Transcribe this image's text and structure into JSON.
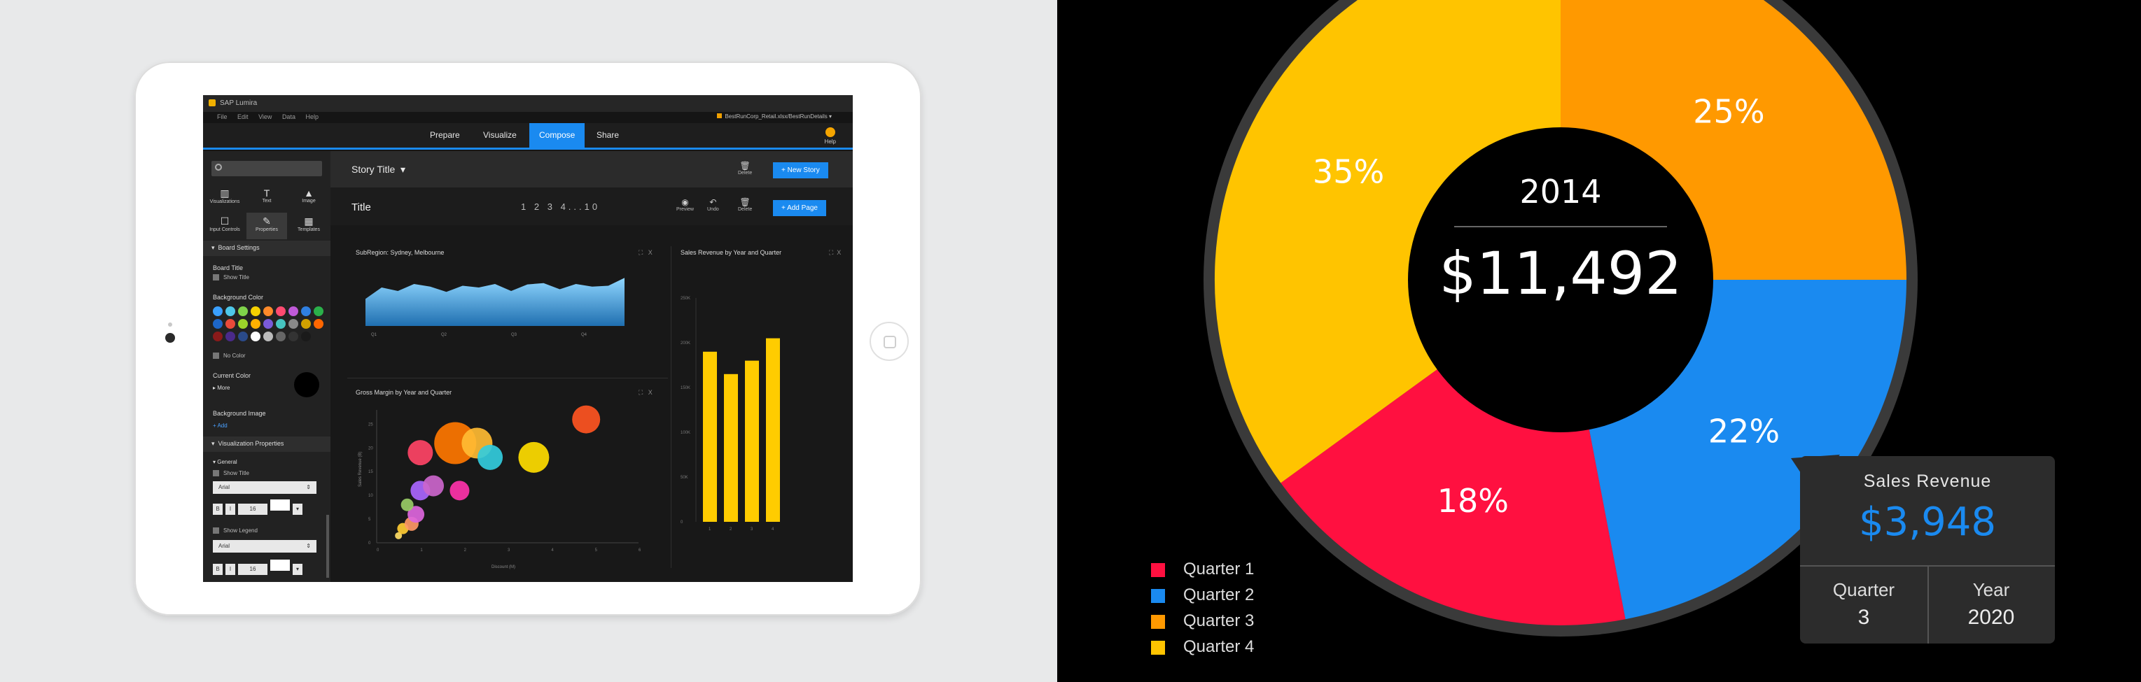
{
  "app": {
    "name": "SAP Lumira",
    "menu": [
      "File",
      "Edit",
      "View",
      "Data",
      "Help"
    ],
    "file_label": "BestRunCorp_Retail.xlsx/BestRunDetails",
    "help_label": "Help"
  },
  "nav": {
    "tabs": [
      {
        "label": "Prepare"
      },
      {
        "label": "Visualize"
      },
      {
        "label": "Compose",
        "active": true
      },
      {
        "label": "Share"
      }
    ]
  },
  "sidebar": {
    "tools": [
      {
        "label": "Visualizations",
        "icon": "bar-chart-icon"
      },
      {
        "label": "Text",
        "icon": "text-icon"
      },
      {
        "label": "Image",
        "icon": "image-icon"
      },
      {
        "label": "Input Controls",
        "icon": "input-controls-icon"
      },
      {
        "label": "Properties",
        "icon": "properties-icon",
        "selected": true
      },
      {
        "label": "Templates",
        "icon": "templates-icon"
      }
    ],
    "board_settings": "Board Settings",
    "board_title": "Board Title",
    "show_title": "Show Title",
    "background_color": "Background Color",
    "no_color": "No Color",
    "current_color": "Current Color",
    "more": "More",
    "background_image": "Background Image",
    "add": "Add",
    "visualization_properties": "Visualization Properties",
    "general": "General",
    "show_title_2": "Show Title",
    "font": "Arial",
    "font_size": "16",
    "bold": "B",
    "italic": "I",
    "show_legend": "Show Legend",
    "font_2": "Arial",
    "font_size_2": "16",
    "swatch_colors": [
      "#3aa0ff",
      "#4ec7e8",
      "#7fd34a",
      "#f5d000",
      "#ff8a2a",
      "#ff4a70",
      "#c05ad8",
      "#2f7fe0",
      "#2bb04a",
      "#1d66c8",
      "#e84a3a",
      "#9bd42a",
      "#ffb000",
      "#7a5ad8",
      "#46c4c0",
      "#888888",
      "#d0a000",
      "#ff6600",
      "#8a1a1a",
      "#4a2a8a",
      "#2a4a8a",
      "#ffffff",
      "#bbbbbb",
      "#666666",
      "#333333",
      "#1a1a1a"
    ]
  },
  "story": {
    "title": "Story Title",
    "delete": "Delete",
    "new_story": "+ New Story",
    "page_title": "Title",
    "pages": [
      "1",
      "2",
      "3",
      "4...10"
    ],
    "preview": "Preview",
    "undo": "Undo",
    "delete_page": "Delete",
    "add_page": "+ Add Page"
  },
  "cards": {
    "area_title": "SubRegion: Sydney, Melbourne",
    "bar_title": "Sales Revenue by Year and Quarter",
    "bubble_title": "Gross Margin by Year and Quarter",
    "area_x_ticks": [
      "Q1",
      "Q2",
      "Q3",
      "Q4"
    ],
    "bubble_x_label": "Discount (M)",
    "bubble_y_label": "Sales Revenue (B)",
    "bubble_x_ticks": [
      "0",
      "1",
      "2",
      "3",
      "4",
      "5",
      "6"
    ],
    "bubble_y_ticks": [
      "0",
      "5",
      "10",
      "15",
      "20",
      "25"
    ],
    "bar_y_ticks": [
      "0",
      "50K",
      "100K",
      "150K",
      "200K",
      "250K"
    ],
    "bar_x_ticks": [
      "1",
      "2",
      "3",
      "4"
    ],
    "bar_values": [
      190,
      165,
      180,
      205
    ]
  },
  "area_series": [
    62,
    88,
    80,
    96,
    90,
    78,
    92,
    88,
    96,
    80,
    95,
    98,
    84,
    96,
    90,
    92,
    110
  ],
  "bubbles": [
    {
      "x": 0.5,
      "y": 1.5,
      "r": 5,
      "c": "#ffdd66"
    },
    {
      "x": 0.6,
      "y": 3,
      "r": 8,
      "c": "#ffcc33"
    },
    {
      "x": 0.8,
      "y": 4,
      "r": 10,
      "c": "#ff9966"
    },
    {
      "x": 0.9,
      "y": 6,
      "r": 12,
      "c": "#dd66dd"
    },
    {
      "x": 0.7,
      "y": 8,
      "r": 9,
      "c": "#99cc66"
    },
    {
      "x": 1.0,
      "y": 11,
      "r": 14,
      "c": "#aa66ff"
    },
    {
      "x": 1.3,
      "y": 12,
      "r": 15,
      "c": "#cc66cc"
    },
    {
      "x": 1.0,
      "y": 19,
      "r": 18,
      "c": "#ff4466"
    },
    {
      "x": 1.9,
      "y": 11,
      "r": 14,
      "c": "#ff33aa"
    },
    {
      "x": 1.8,
      "y": 21,
      "r": 30,
      "c": "#ff7700"
    },
    {
      "x": 2.3,
      "y": 21,
      "r": 22,
      "c": "#ffbb33"
    },
    {
      "x": 2.6,
      "y": 18,
      "r": 18,
      "c": "#33ccdd"
    },
    {
      "x": 3.6,
      "y": 18,
      "r": 22,
      "c": "#ffdd00"
    },
    {
      "x": 4.8,
      "y": 26,
      "r": 20,
      "c": "#ff5522"
    }
  ],
  "donut": {
    "year": "2014",
    "total": "$11,492",
    "slices": [
      {
        "name": "Quarter 4",
        "pct": 35,
        "label": "35%",
        "color": "#ffc400"
      },
      {
        "name": "Quarter 3",
        "pct": 25,
        "label": "25%",
        "color": "#ff9900"
      },
      {
        "name": "Quarter 2",
        "pct": 22,
        "label": "22%",
        "color": "#1a8af0"
      },
      {
        "name": "Quarter 1",
        "pct": 18,
        "label": "18%",
        "color": "#ff1040"
      }
    ]
  },
  "legend": [
    {
      "label": "Quarter 1",
      "color": "#ff1040"
    },
    {
      "label": "Quarter 2",
      "color": "#1a8af0"
    },
    {
      "label": "Quarter 3",
      "color": "#ff9900"
    },
    {
      "label": "Quarter 4",
      "color": "#ffc400"
    }
  ],
  "tooltip": {
    "title": "Sales Revenue",
    "value": "$3,948",
    "quarter_label": "Quarter",
    "quarter_value": "3",
    "year_label": "Year",
    "year_value": "2020"
  }
}
